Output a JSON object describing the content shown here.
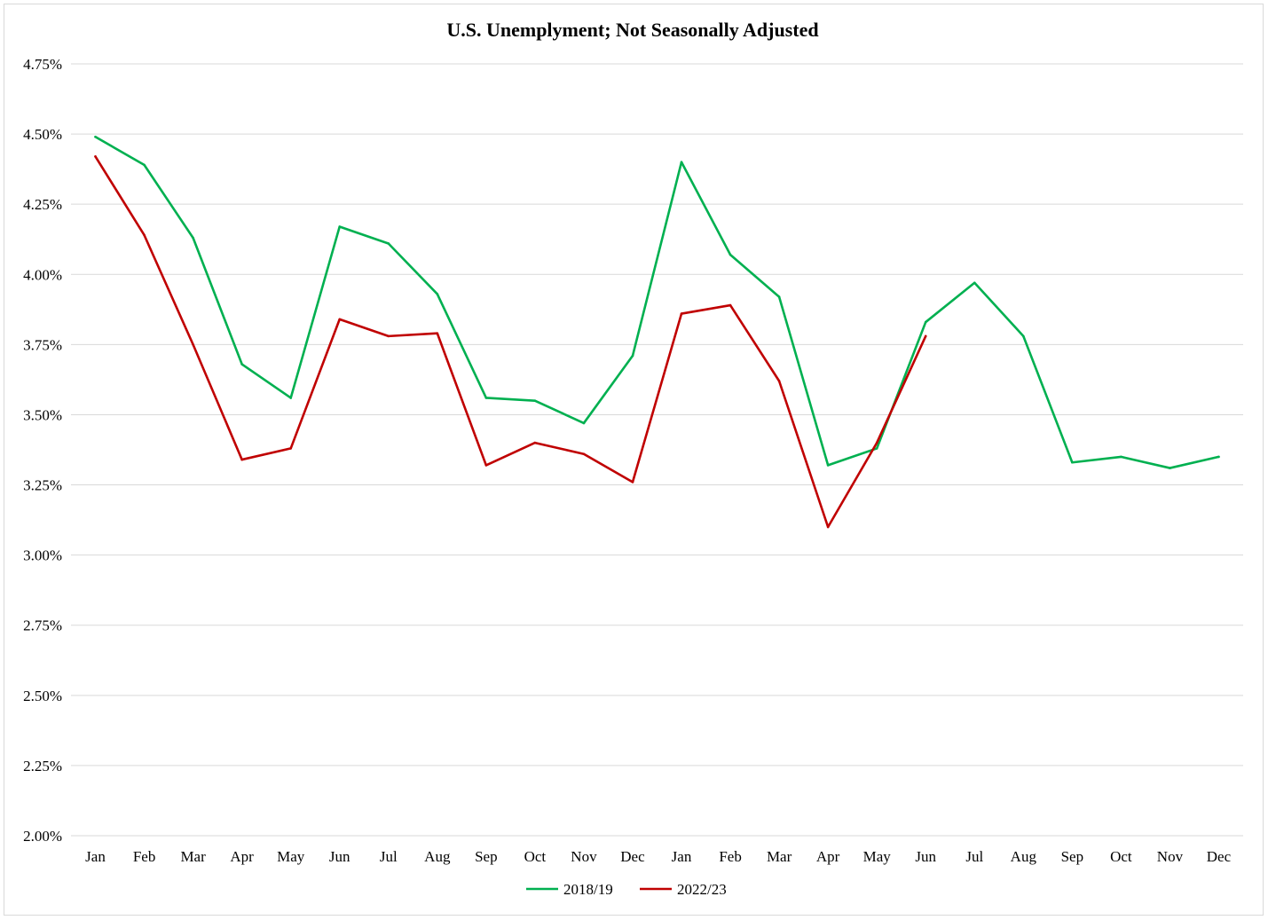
{
  "chart_data": {
    "type": "line",
    "title": "U.S. Unemplyment; Not Seasonally Adjusted",
    "xlabel": "",
    "ylabel": "",
    "categories": [
      "Jan",
      "Feb",
      "Mar",
      "Apr",
      "May",
      "Jun",
      "Jul",
      "Aug",
      "Sep",
      "Oct",
      "Nov",
      "Dec",
      "Jan",
      "Feb",
      "Mar",
      "Apr",
      "May",
      "Jun",
      "Jul",
      "Aug",
      "Sep",
      "Oct",
      "Nov",
      "Dec"
    ],
    "ylim": [
      2.0,
      4.75
    ],
    "yticks": [
      2.0,
      2.25,
      2.5,
      2.75,
      3.0,
      3.25,
      3.5,
      3.75,
      4.0,
      4.25,
      4.5,
      4.75
    ],
    "ytick_labels": [
      "2.00%",
      "2.25%",
      "2.50%",
      "2.75%",
      "3.00%",
      "3.25%",
      "3.50%",
      "3.75%",
      "4.00%",
      "4.25%",
      "4.50%",
      "4.75%"
    ],
    "grid": true,
    "legend_position": "bottom-center",
    "series": [
      {
        "name": "2018/19",
        "color": "#00b050",
        "values": [
          4.49,
          4.39,
          4.13,
          3.68,
          3.56,
          4.17,
          4.11,
          3.93,
          3.56,
          3.55,
          3.47,
          3.71,
          4.4,
          4.07,
          3.92,
          3.32,
          3.38,
          3.83,
          3.97,
          3.78,
          3.33,
          3.35,
          3.31,
          3.35
        ]
      },
      {
        "name": "2022/23",
        "color": "#c00000",
        "values": [
          4.42,
          4.14,
          3.75,
          3.34,
          3.38,
          3.84,
          3.78,
          3.79,
          3.32,
          3.4,
          3.36,
          3.26,
          3.86,
          3.89,
          3.62,
          3.1,
          3.4,
          3.78,
          null,
          null,
          null,
          null,
          null,
          null
        ]
      }
    ]
  }
}
